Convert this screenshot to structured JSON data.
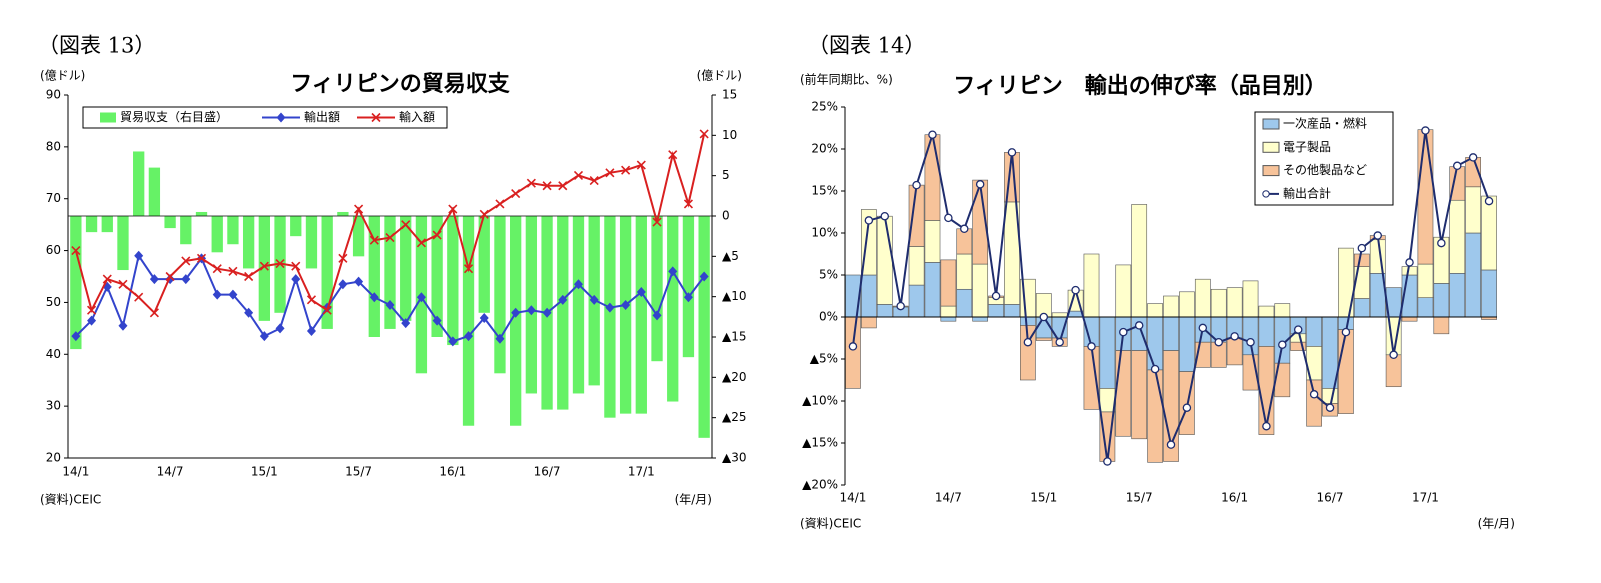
{
  "chart_data": [
    {
      "type": "bar",
      "label": "（図表 13）",
      "title": "フィリピンの貿易収支",
      "y_unit": "(億ドル)",
      "y2_unit": "(億ドル)",
      "source": "(資料)CEIC",
      "x_unit": "(年/月)",
      "categories": [
        "14/1",
        null,
        null,
        null,
        null,
        null,
        "14/7",
        null,
        null,
        null,
        null,
        null,
        "15/1",
        null,
        null,
        null,
        null,
        null,
        "15/7",
        null,
        null,
        null,
        null,
        null,
        "16/1",
        null,
        null,
        null,
        null,
        null,
        "16/7",
        null,
        null,
        null,
        null,
        null,
        "17/1",
        null,
        null,
        null,
        null
      ],
      "ylim": [
        20,
        90
      ],
      "yticks": [
        20,
        30,
        40,
        50,
        60,
        70,
        80,
        90
      ],
      "y2lim": [
        -30,
        15
      ],
      "y2ticks": [
        {
          "value": -30,
          "label": "▲30"
        },
        {
          "value": -25,
          "label": "▲25"
        },
        {
          "value": -20,
          "label": "▲20"
        },
        {
          "value": -15,
          "label": "▲15"
        },
        {
          "value": -10,
          "label": "▲10"
        },
        {
          "value": -5,
          "label": "▲5"
        },
        0,
        5,
        10,
        15
      ],
      "series": [
        {
          "name": "貿易収支（右目盛）",
          "type": "bar",
          "axis": "y2",
          "color": "#66f266",
          "values": [
            -16.5,
            -2,
            -2,
            -6.7,
            8,
            6,
            -1.5,
            -3.5,
            0.5,
            -4.5,
            -3.5,
            -6.5,
            -13,
            -12,
            -2.5,
            -6.5,
            -14,
            0.5,
            -5,
            -15,
            -14,
            -13,
            -19.5,
            -15,
            -16,
            -26,
            -12,
            -19.5,
            -26,
            -22,
            -24,
            -24,
            -22,
            -21,
            -25,
            -24.5,
            -24.5,
            -18,
            -23,
            -17.5,
            -27.5
          ]
        },
        {
          "name": "輸出額",
          "type": "line",
          "marker": "diamond",
          "color": "#3344cc",
          "values": [
            43.5,
            46.5,
            53,
            45.5,
            59,
            54.5,
            54.5,
            54.5,
            58.5,
            51.5,
            51.5,
            48,
            43.5,
            45,
            54.5,
            44.5,
            49,
            53.5,
            54,
            51,
            49.5,
            46,
            51,
            46.5,
            42.5,
            43.5,
            47,
            43,
            48,
            48.5,
            48,
            50.5,
            53.5,
            50.5,
            49,
            49.5,
            52,
            47.5,
            56,
            51,
            55
          ]
        },
        {
          "name": "輸入額",
          "type": "line",
          "marker": "x",
          "color": "#d92020",
          "values": [
            60,
            48.5,
            54.5,
            53.5,
            51,
            48,
            55,
            58,
            58.5,
            56.5,
            56,
            55,
            57,
            57.5,
            57,
            50.5,
            48.5,
            58.5,
            68,
            62,
            62.5,
            65,
            61.5,
            63,
            68,
            56.5,
            67,
            69,
            71,
            73,
            72.5,
            72.5,
            74.5,
            73.5,
            75,
            75.5,
            76.5,
            65.5,
            78.5,
            69,
            82.5
          ]
        }
      ]
    },
    {
      "type": "bar",
      "stacked": true,
      "label": "（図表 14）",
      "title": "フィリピン　輸出の伸び率（品目別）",
      "y_unit": "(前年同期比、%)",
      "source": "(資料)CEIC",
      "x_unit": "(年/月)",
      "categories": [
        "14/1",
        null,
        null,
        null,
        null,
        null,
        "14/7",
        null,
        null,
        null,
        null,
        null,
        "15/1",
        null,
        null,
        null,
        null,
        null,
        "15/7",
        null,
        null,
        null,
        null,
        null,
        "16/1",
        null,
        null,
        null,
        null,
        null,
        "16/7",
        null,
        null,
        null,
        null,
        null,
        "17/1",
        null,
        null,
        null,
        null
      ],
      "ylim": [
        -20,
        25
      ],
      "yticks": [
        {
          "value": -20,
          "label": "▲20%"
        },
        {
          "value": -15,
          "label": "▲15%"
        },
        {
          "value": -10,
          "label": "▲10%"
        },
        {
          "value": -5,
          "label": "▲5%"
        },
        {
          "value": 0,
          "label": "0%"
        },
        {
          "value": 5,
          "label": "5%"
        },
        {
          "value": 10,
          "label": "10%"
        },
        {
          "value": 15,
          "label": "15%"
        },
        {
          "value": 20,
          "label": "20%"
        },
        {
          "value": 25,
          "label": "25%"
        }
      ],
      "series": [
        {
          "name": "一次産品・燃料",
          "type": "bar",
          "color": "#9ec8ec",
          "values": [
            5,
            5,
            1.5,
            1.2,
            3.8,
            6.5,
            -0.5,
            3.3,
            -0.5,
            1.5,
            1.5,
            -1,
            -2.5,
            -2.5,
            0.7,
            -3.5,
            -8.5,
            -4,
            -4,
            -6.3,
            -4,
            -6.5,
            -3,
            -3,
            -2.5,
            -4.5,
            -3.5,
            -5.5,
            -2,
            -3.5,
            -8.5,
            -1.5,
            2.2,
            5.2,
            3.5,
            5,
            2.3,
            4,
            5.2,
            10,
            5.6
          ]
        },
        {
          "name": "電子製品",
          "type": "bar",
          "color": "#ffffcc",
          "values": [
            0,
            7.8,
            10.5,
            0,
            4.6,
            5,
            1.3,
            4.2,
            6.3,
            0.8,
            12.2,
            4.5,
            2.8,
            0.5,
            2.5,
            7.5,
            -2.8,
            6.2,
            13.4,
            1.6,
            2.5,
            3,
            4.5,
            3.3,
            3.5,
            4.3,
            1.3,
            1.6,
            -1,
            -4,
            -1.8,
            8.2,
            3.8,
            4,
            -4.5,
            1,
            4,
            5.5,
            8.7,
            5.5,
            8.8
          ]
        },
        {
          "name": "その他製品など",
          "type": "bar",
          "color": "#f7c39a",
          "values": [
            -8.5,
            -1.3,
            0,
            0.1,
            7.3,
            10.2,
            5.5,
            3,
            10,
            0.2,
            5.9,
            -6.5,
            -0.3,
            -1,
            0,
            -7.5,
            -5.9,
            -10.2,
            -10.5,
            -11,
            -13.2,
            -7.5,
            -3,
            -3,
            -3.2,
            -4.2,
            -10.5,
            -4,
            -1,
            -5.5,
            -1.5,
            -10,
            1.5,
            0.5,
            -3.8,
            -0.5,
            16,
            -2,
            4,
            3.5,
            -0.3
          ]
        },
        {
          "name": "輸出合計",
          "type": "line",
          "marker": "circle",
          "color": "#1f2d6e",
          "values": [
            -3.5,
            11.5,
            12,
            1.3,
            15.7,
            21.7,
            11.8,
            10.5,
            15.8,
            2.5,
            19.6,
            -3,
            0,
            -3,
            3.2,
            -3.5,
            -17.2,
            -1.8,
            -1,
            -6.2,
            -15.2,
            -10.8,
            -1.3,
            -3,
            -2.3,
            -3,
            -13,
            -3.3,
            -1.5,
            -9.2,
            -10.8,
            -1.8,
            8.2,
            9.7,
            -4.5,
            6.5,
            22.2,
            8.8,
            18,
            19,
            13.8
          ]
        }
      ]
    }
  ]
}
